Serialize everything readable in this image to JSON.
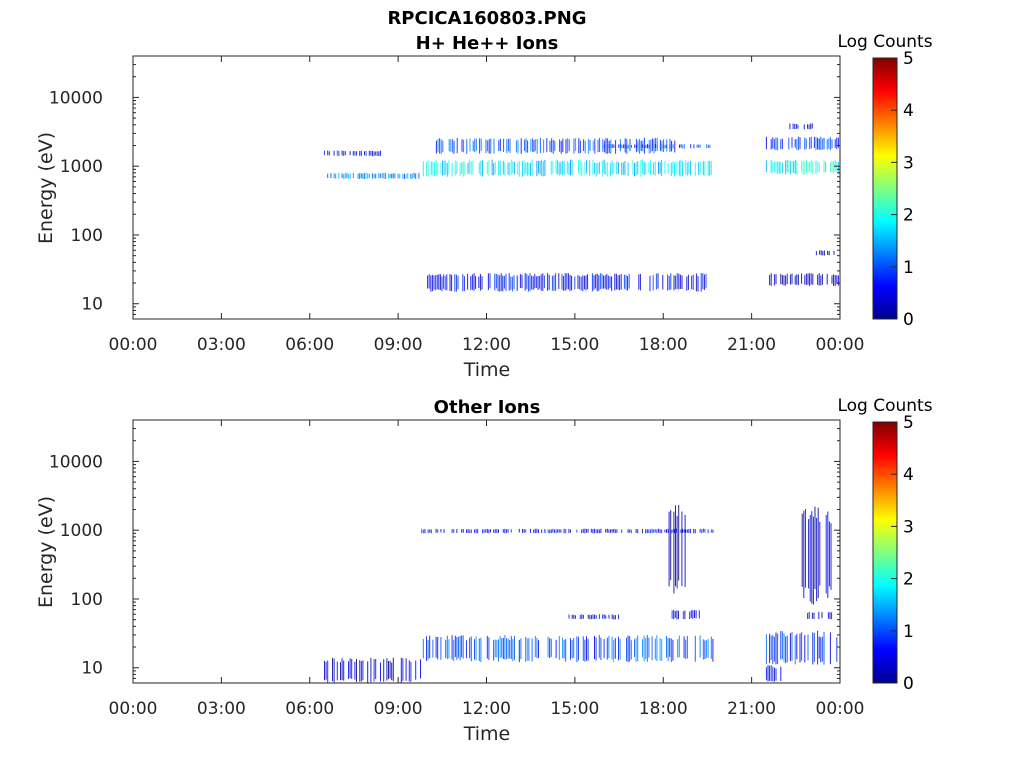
{
  "figure": {
    "filename_title": "RPCICA160803.PNG"
  },
  "chart_data": [
    {
      "type": "heatmap",
      "title": "H+ He++ Ions",
      "xlabel": "Time",
      "ylabel": "Energy (eV)",
      "x_ticks": [
        "00:00",
        "03:00",
        "06:00",
        "09:00",
        "12:00",
        "15:00",
        "18:00",
        "21:00",
        "00:00"
      ],
      "x_tick_hours": [
        0,
        3,
        6,
        9,
        12,
        15,
        18,
        21,
        24
      ],
      "xlim_hours": [
        0,
        24
      ],
      "y_ticks": [
        "10",
        "100",
        "1000",
        "10000"
      ],
      "y_tick_values": [
        10,
        100,
        1000,
        10000
      ],
      "ylim": [
        6,
        40000
      ],
      "y_scale": "log",
      "grid": false,
      "colorbar": {
        "label": "Log Counts",
        "ticks": [
          "0",
          "1",
          "2",
          "3",
          "4",
          "5"
        ],
        "range": [
          0,
          5
        ],
        "colormap": "jet"
      },
      "regions": [
        {
          "t_start": 6.5,
          "t_end": 9.8,
          "e_low": 650,
          "e_high": 800,
          "log_counts": 1.3
        },
        {
          "t_start": 9.8,
          "t_end": 19.7,
          "e_low": 700,
          "e_high": 1250,
          "log_counts": 1.7
        },
        {
          "t_start": 10.3,
          "t_end": 18.5,
          "e_low": 1500,
          "e_high": 2600,
          "log_counts": 1.0
        },
        {
          "t_start": 6.5,
          "t_end": 8.5,
          "e_low": 1400,
          "e_high": 1700,
          "log_counts": 0.6
        },
        {
          "t_start": 10.0,
          "t_end": 19.5,
          "e_low": 15,
          "e_high": 28,
          "log_counts": 0.6
        },
        {
          "t_start": 16.0,
          "t_end": 19.6,
          "e_low": 1800,
          "e_high": 2100,
          "log_counts": 0.9
        },
        {
          "t_start": 21.5,
          "t_end": 24.0,
          "e_low": 750,
          "e_high": 1250,
          "log_counts": 1.9
        },
        {
          "t_start": 21.5,
          "t_end": 24.0,
          "e_low": 1700,
          "e_high": 2700,
          "log_counts": 0.9
        },
        {
          "t_start": 22.3,
          "t_end": 23.2,
          "e_low": 3400,
          "e_high": 4200,
          "log_counts": 0.4
        },
        {
          "t_start": 21.5,
          "t_end": 24.0,
          "e_low": 18,
          "e_high": 28,
          "log_counts": 0.2
        },
        {
          "t_start": 23.2,
          "t_end": 23.8,
          "e_low": 50,
          "e_high": 60,
          "log_counts": 0.2
        }
      ]
    },
    {
      "type": "heatmap",
      "title": "Other Ions",
      "xlabel": "Time",
      "ylabel": "Energy (eV)",
      "x_ticks": [
        "00:00",
        "03:00",
        "06:00",
        "09:00",
        "12:00",
        "15:00",
        "18:00",
        "21:00",
        "00:00"
      ],
      "x_tick_hours": [
        0,
        3,
        6,
        9,
        12,
        15,
        18,
        21,
        24
      ],
      "xlim_hours": [
        0,
        24
      ],
      "y_ticks": [
        "10",
        "100",
        "1000",
        "10000"
      ],
      "y_tick_values": [
        10,
        100,
        1000,
        10000
      ],
      "ylim": [
        6,
        40000
      ],
      "y_scale": "log",
      "grid": false,
      "colorbar": {
        "label": "Log Counts",
        "ticks": [
          "0",
          "1",
          "2",
          "3",
          "4",
          "5"
        ],
        "range": [
          0,
          5
        ],
        "colormap": "jet"
      },
      "regions": [
        {
          "t_start": 9.8,
          "t_end": 19.7,
          "e_low": 12,
          "e_high": 30,
          "log_counts": 1.0
        },
        {
          "t_start": 6.5,
          "t_end": 9.8,
          "e_low": 6,
          "e_high": 14,
          "log_counts": 0.4
        },
        {
          "t_start": 9.8,
          "t_end": 19.7,
          "e_low": 900,
          "e_high": 1050,
          "log_counts": 0.6
        },
        {
          "t_start": 14.8,
          "t_end": 16.5,
          "e_low": 50,
          "e_high": 60,
          "log_counts": 0.4
        },
        {
          "t_start": 18.3,
          "t_end": 19.6,
          "e_low": 50,
          "e_high": 70,
          "log_counts": 0.5
        },
        {
          "t_start": 18.2,
          "t_end": 18.8,
          "e_low": 100,
          "e_high": 3000,
          "log_counts": 0.4
        },
        {
          "t_start": 21.5,
          "t_end": 24.0,
          "e_low": 11,
          "e_high": 35,
          "log_counts": 0.8
        },
        {
          "t_start": 21.5,
          "t_end": 22.0,
          "e_low": 6,
          "e_high": 11,
          "log_counts": 0.5
        },
        {
          "t_start": 22.5,
          "t_end": 23.8,
          "e_low": 80,
          "e_high": 2500,
          "log_counts": 0.4
        },
        {
          "t_start": 22.9,
          "t_end": 23.8,
          "e_low": 50,
          "e_high": 65,
          "log_counts": 0.3
        }
      ]
    }
  ]
}
